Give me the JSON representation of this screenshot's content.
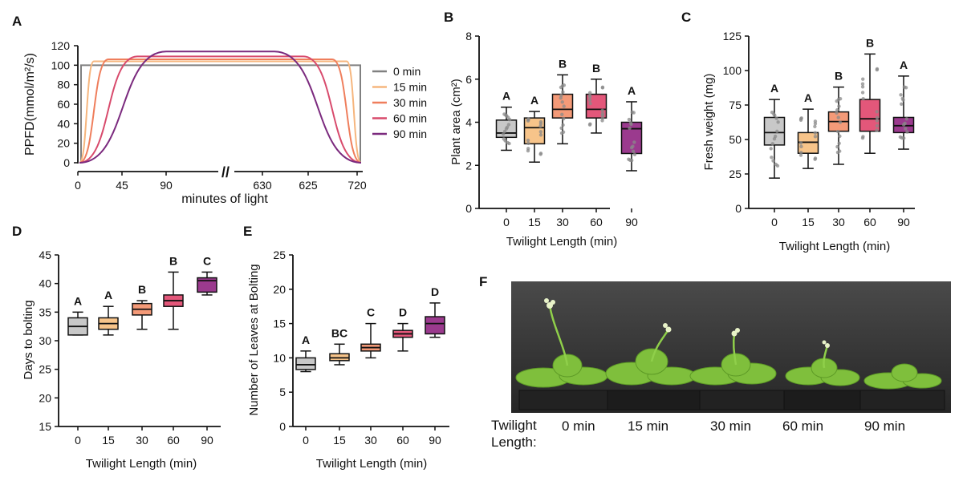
{
  "panel_labels": {
    "a": "A",
    "b": "B",
    "c": "C",
    "d": "D",
    "e": "E",
    "f": "F"
  },
  "colors": {
    "c0": "#c8c8c8",
    "c15": "#f7c48a",
    "c30": "#f49a78",
    "c60": "#e3577a",
    "c90": "#9b3a8e",
    "l0": "#808080",
    "l15": "#f6b67e",
    "l30": "#ef7e5c",
    "l60": "#d84a6c",
    "l90": "#7b2a7e"
  },
  "chart_data": [
    {
      "id": "A",
      "type": "line",
      "title": "",
      "xlabel": "minutes of light",
      "ylabel": "PPFD(mmol/m²/s)",
      "ylim": [
        0,
        120
      ],
      "yticks": [
        "0",
        "20",
        "40",
        "60",
        "80",
        "100",
        "120"
      ],
      "xticks": [
        "0",
        "45",
        "90",
        "630",
        "625",
        "720"
      ],
      "axis_break": "//",
      "series": [
        {
          "name": "0 min",
          "ramp": 0,
          "plateau": 100
        },
        {
          "name": "15 min",
          "ramp": 15,
          "plateau": 104
        },
        {
          "name": "30 min",
          "ramp": 30,
          "plateau": 106
        },
        {
          "name": "60 min",
          "ramp": 60,
          "plateau": 109
        },
        {
          "name": "90 min",
          "ramp": 90,
          "plateau": 114
        }
      ]
    },
    {
      "id": "B",
      "type": "box",
      "xlabel": "Twilight Length (min)",
      "ylabel": "Plant area (cm²)",
      "ylim": [
        0,
        8
      ],
      "yticks": [
        "0",
        "2",
        "4",
        "6",
        "8"
      ],
      "categories": [
        "0",
        "15",
        "30",
        "60",
        "90"
      ],
      "boxes": [
        {
          "min": 2.7,
          "q1": 3.3,
          "median": 3.5,
          "q3": 4.1,
          "max": 4.7
        },
        {
          "min": 2.15,
          "q1": 3.0,
          "median": 3.75,
          "q3": 4.2,
          "max": 4.5
        },
        {
          "min": 3.0,
          "q1": 4.2,
          "median": 4.6,
          "q3": 5.3,
          "max": 6.2
        },
        {
          "min": 3.5,
          "q1": 4.2,
          "median": 4.6,
          "q3": 5.3,
          "max": 6.0
        },
        {
          "min": 1.75,
          "q1": 2.55,
          "median": 3.7,
          "q3": 4.0,
          "max": 4.95
        }
      ],
      "letters": [
        "A",
        "A",
        "B",
        "B",
        "A"
      ]
    },
    {
      "id": "C",
      "type": "box",
      "xlabel": "Twilight Length (min)",
      "ylabel": "Fresh weight (mg)",
      "ylim": [
        0,
        125
      ],
      "yticks": [
        "0",
        "25",
        "50",
        "75",
        "100",
        "125"
      ],
      "categories": [
        "0",
        "15",
        "30",
        "60",
        "90"
      ],
      "boxes": [
        {
          "min": 22,
          "q1": 46,
          "median": 55,
          "q3": 66,
          "max": 79
        },
        {
          "min": 29,
          "q1": 40,
          "median": 48,
          "q3": 55,
          "max": 72
        },
        {
          "min": 32,
          "q1": 56,
          "median": 63,
          "q3": 70,
          "max": 88
        },
        {
          "min": 40,
          "q1": 56,
          "median": 65,
          "q3": 79,
          "max": 112
        },
        {
          "min": 43,
          "q1": 55,
          "median": 60,
          "q3": 66,
          "max": 96
        }
      ],
      "letters": [
        "A",
        "A",
        "B",
        "B",
        "A"
      ]
    },
    {
      "id": "D",
      "type": "box",
      "xlabel": "Twilight Length (min)",
      "ylabel": "Days to bolting",
      "ylim": [
        15,
        45
      ],
      "yticks": [
        "15",
        "20",
        "25",
        "30",
        "35",
        "40",
        "45"
      ],
      "categories": [
        "0",
        "15",
        "30",
        "60",
        "90"
      ],
      "boxes": [
        {
          "min": 31,
          "q1": 31,
          "median": 32.5,
          "q3": 34,
          "max": 35
        },
        {
          "min": 31,
          "q1": 32,
          "median": 33,
          "q3": 34,
          "max": 36
        },
        {
          "min": 32,
          "q1": 34.5,
          "median": 35.5,
          "q3": 36.5,
          "max": 37
        },
        {
          "min": 32,
          "q1": 36,
          "median": 37,
          "q3": 38,
          "max": 42
        },
        {
          "min": 38,
          "q1": 38.5,
          "median": 40.5,
          "q3": 41,
          "max": 42
        }
      ],
      "letters": [
        "A",
        "A",
        "B",
        "B",
        "C"
      ]
    },
    {
      "id": "E",
      "type": "box",
      "xlabel": "Twilight Length (min)",
      "ylabel": "Number of Leaves at Bolting",
      "ylim": [
        0,
        25
      ],
      "yticks": [
        "0",
        "5",
        "10",
        "15",
        "20",
        "25"
      ],
      "categories": [
        "0",
        "15",
        "30",
        "60",
        "90"
      ],
      "boxes": [
        {
          "min": 8,
          "q1": 8.3,
          "median": 9,
          "q3": 10,
          "max": 11
        },
        {
          "min": 9,
          "q1": 9.6,
          "median": 10,
          "q3": 10.6,
          "max": 12
        },
        {
          "min": 10,
          "q1": 11,
          "median": 11.5,
          "q3": 12,
          "max": 15
        },
        {
          "min": 11,
          "q1": 13,
          "median": 13.5,
          "q3": 14,
          "max": 15
        },
        {
          "min": 13,
          "q1": 13.5,
          "median": 15,
          "q3": 16,
          "max": 18
        }
      ],
      "letters": [
        "A",
        "BC",
        "C",
        "D",
        "D"
      ]
    }
  ],
  "photo": {
    "label_line1": "Twilight",
    "label_line2": "Length:",
    "captions": [
      "0 min",
      "15 min",
      "30 min",
      "60 min",
      "90 min"
    ]
  }
}
